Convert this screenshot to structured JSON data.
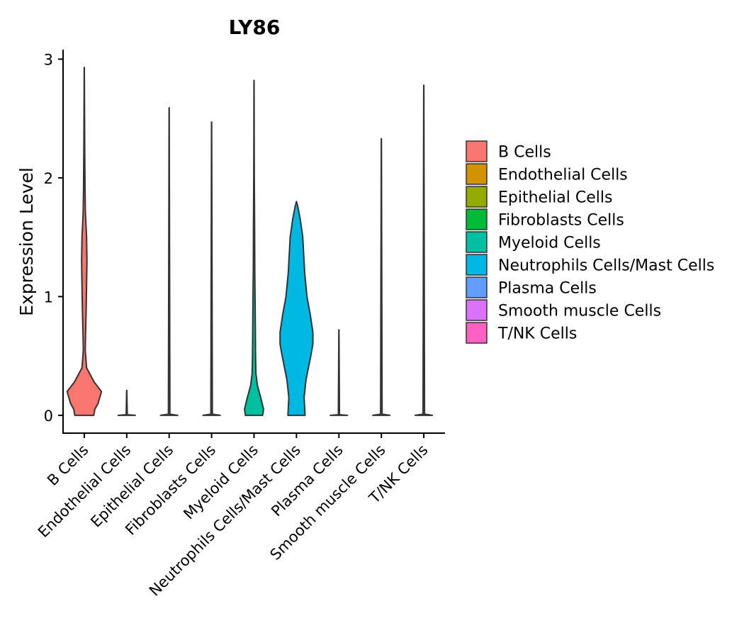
{
  "chart_data": {
    "type": "violin",
    "title": "LY86",
    "xlabel": "",
    "ylabel": "Expression Level",
    "ylim": [
      -0.15,
      3.08
    ],
    "yticks": [
      0,
      1,
      2,
      3
    ],
    "legend_position": "right",
    "categories": [
      "B Cells",
      "Endothelial Cells",
      "Epithelial Cells",
      "Fibroblasts Cells",
      "Myeloid Cells",
      "Neutrophils Cells/Mast Cells",
      "Plasma Cells",
      "Smooth muscle Cells",
      "T/NK Cells"
    ],
    "colors": [
      "#F8766D",
      "#D39200",
      "#93AA00",
      "#00BA38",
      "#00C19F",
      "#00B9E3",
      "#619CFF",
      "#DB72FB",
      "#FF61C3"
    ],
    "series": [
      {
        "name": "B Cells",
        "max": 2.93,
        "density": [
          [
            0,
            0.5
          ],
          [
            0.05,
            0.55
          ],
          [
            0.1,
            0.72
          ],
          [
            0.2,
            0.9
          ],
          [
            0.28,
            0.52
          ],
          [
            0.4,
            0.12
          ],
          [
            0.55,
            0.05
          ],
          [
            0.7,
            0.07
          ],
          [
            0.9,
            0.1
          ],
          [
            1.1,
            0.12
          ],
          [
            1.3,
            0.14
          ],
          [
            1.5,
            0.12
          ],
          [
            1.7,
            0.06
          ],
          [
            1.9,
            0.04
          ],
          [
            2.2,
            0.025
          ],
          [
            2.6,
            0.012
          ],
          [
            2.93,
            0.004
          ]
        ]
      },
      {
        "name": "Endothelial Cells",
        "max": 0.21,
        "density": [
          [
            0,
            0.45
          ],
          [
            0.005,
            0.03
          ],
          [
            0.21,
            0.004
          ]
        ]
      },
      {
        "name": "Epithelial Cells",
        "max": 2.59,
        "density": [
          [
            0,
            0.45
          ],
          [
            0.01,
            0.04
          ],
          [
            2.59,
            0.004
          ]
        ]
      },
      {
        "name": "Fibroblasts Cells",
        "max": 2.47,
        "density": [
          [
            0,
            0.45
          ],
          [
            0.01,
            0.04
          ],
          [
            2.47,
            0.004
          ]
        ]
      },
      {
        "name": "Myeloid Cells",
        "max": 2.82,
        "density": [
          [
            0,
            0.45
          ],
          [
            0.05,
            0.5
          ],
          [
            0.15,
            0.35
          ],
          [
            0.25,
            0.18
          ],
          [
            0.35,
            0.1
          ],
          [
            0.5,
            0.08
          ],
          [
            0.7,
            0.07
          ],
          [
            0.9,
            0.06
          ],
          [
            1.2,
            0.04
          ],
          [
            1.6,
            0.03
          ],
          [
            2.0,
            0.015
          ],
          [
            2.4,
            0.008
          ],
          [
            2.82,
            0.004
          ]
        ]
      },
      {
        "name": "Neutrophils Cells/Mast Cells",
        "max": 1.8,
        "density": [
          [
            0,
            0.45
          ],
          [
            0.15,
            0.4
          ],
          [
            0.3,
            0.5
          ],
          [
            0.5,
            0.75
          ],
          [
            0.6,
            0.86
          ],
          [
            0.7,
            0.86
          ],
          [
            0.85,
            0.72
          ],
          [
            1.0,
            0.55
          ],
          [
            1.2,
            0.43
          ],
          [
            1.5,
            0.33
          ],
          [
            1.65,
            0.2
          ],
          [
            1.75,
            0.08
          ],
          [
            1.8,
            0.004
          ]
        ]
      },
      {
        "name": "Plasma Cells",
        "max": 0.72,
        "density": [
          [
            0,
            0.45
          ],
          [
            0.005,
            0.03
          ],
          [
            0.72,
            0.004
          ]
        ]
      },
      {
        "name": "Smooth muscle Cells",
        "max": 2.33,
        "density": [
          [
            0,
            0.45
          ],
          [
            0.01,
            0.04
          ],
          [
            2.33,
            0.004
          ]
        ]
      },
      {
        "name": "T/NK Cells",
        "max": 2.78,
        "density": [
          [
            0,
            0.45
          ],
          [
            0.01,
            0.04
          ],
          [
            2.78,
            0.004
          ]
        ]
      }
    ]
  }
}
